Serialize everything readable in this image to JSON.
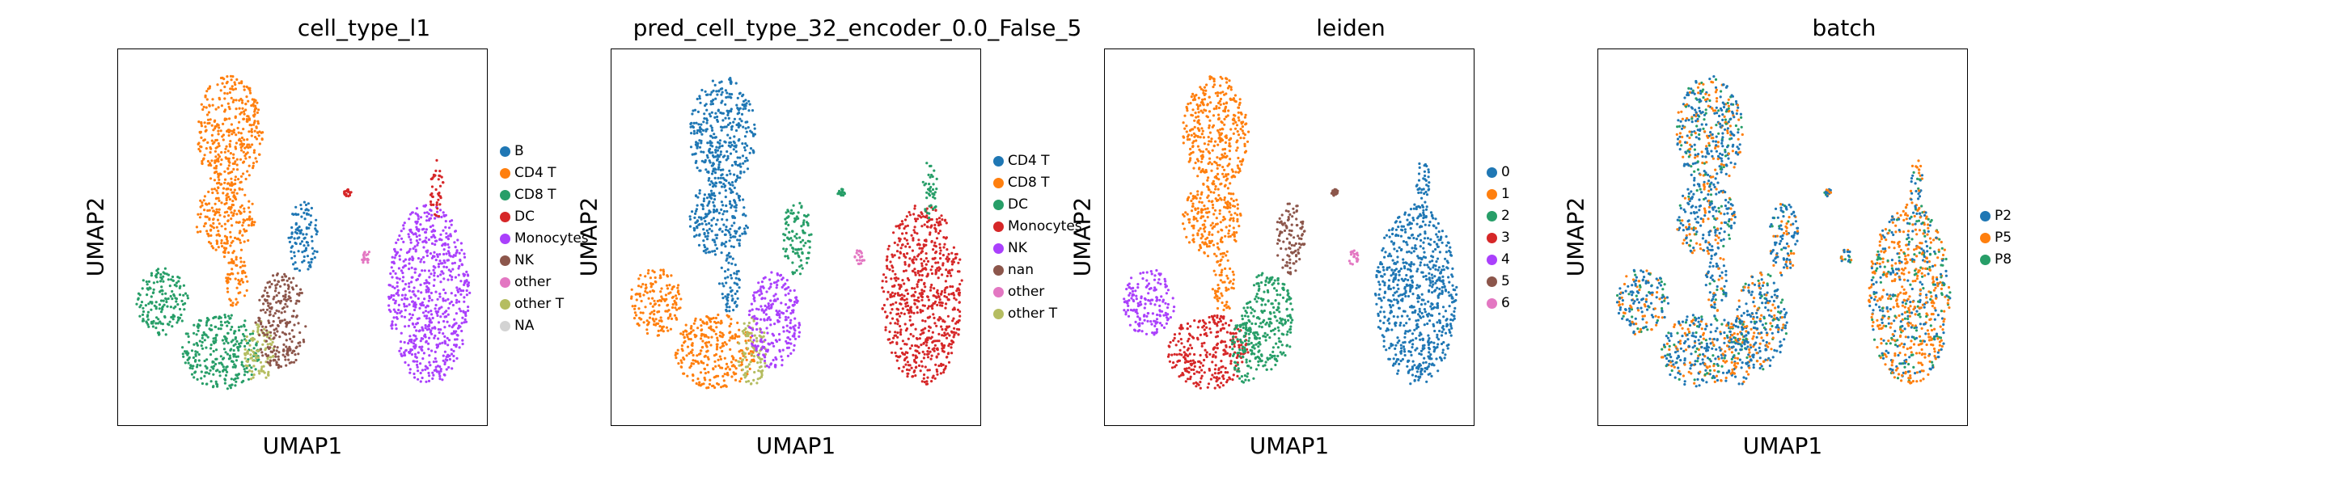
{
  "chart_data": [
    {
      "type": "scatter",
      "title": "cell_type_l1",
      "xlabel": "UMAP1",
      "ylabel": "UMAP2",
      "grid": false,
      "legend_position": "right",
      "categories": [
        "B",
        "CD4 T",
        "CD8 T",
        "DC",
        "Monocytes",
        "NK",
        "other",
        "other T",
        "NA"
      ],
      "colors": [
        "#1f77b4",
        "#ff7f0e",
        "#279e68",
        "#d62728",
        "#aa40fc",
        "#8c564b",
        "#e377c2",
        "#b5bd61",
        "#d3d3d3"
      ],
      "clusters": [
        {
          "cat": 1,
          "x": 0.3,
          "y": 0.78,
          "rx": 0.09,
          "ry": 0.15
        },
        {
          "cat": 1,
          "x": 0.29,
          "y": 0.55,
          "rx": 0.08,
          "ry": 0.1
        },
        {
          "cat": 1,
          "x": 0.32,
          "y": 0.38,
          "rx": 0.03,
          "ry": 0.08
        },
        {
          "cat": 2,
          "x": 0.12,
          "y": 0.33,
          "rx": 0.07,
          "ry": 0.09
        },
        {
          "cat": 2,
          "x": 0.28,
          "y": 0.2,
          "rx": 0.11,
          "ry": 0.1
        },
        {
          "cat": 7,
          "x": 0.38,
          "y": 0.2,
          "rx": 0.04,
          "ry": 0.09
        },
        {
          "cat": 5,
          "x": 0.44,
          "y": 0.28,
          "rx": 0.07,
          "ry": 0.13
        },
        {
          "cat": 0,
          "x": 0.5,
          "y": 0.5,
          "rx": 0.04,
          "ry": 0.1
        },
        {
          "cat": 6,
          "x": 0.67,
          "y": 0.45,
          "rx": 0.015,
          "ry": 0.02
        },
        {
          "cat": 3,
          "x": 0.62,
          "y": 0.62,
          "rx": 0.01,
          "ry": 0.01
        },
        {
          "cat": 4,
          "x": 0.84,
          "y": 0.35,
          "rx": 0.11,
          "ry": 0.24
        },
        {
          "cat": 3,
          "x": 0.86,
          "y": 0.63,
          "rx": 0.02,
          "ry": 0.08
        }
      ]
    },
    {
      "type": "scatter",
      "title": "pred_cell_type_32_encoder_0.0_False_5",
      "xlabel": "UMAP1",
      "ylabel": "UMAP2",
      "grid": false,
      "legend_position": "right",
      "categories": [
        "CD4 T",
        "CD8 T",
        "DC",
        "Monocytes",
        "NK",
        "nan",
        "other",
        "other T"
      ],
      "colors": [
        "#1f77b4",
        "#ff7f0e",
        "#279e68",
        "#d62728",
        "#aa40fc",
        "#8c564b",
        "#e377c2",
        "#b5bd61"
      ],
      "clusters": [
        {
          "cat": 0,
          "x": 0.3,
          "y": 0.78,
          "rx": 0.09,
          "ry": 0.15
        },
        {
          "cat": 0,
          "x": 0.29,
          "y": 0.55,
          "rx": 0.08,
          "ry": 0.1
        },
        {
          "cat": 0,
          "x": 0.32,
          "y": 0.38,
          "rx": 0.03,
          "ry": 0.08
        },
        {
          "cat": 1,
          "x": 0.12,
          "y": 0.33,
          "rx": 0.07,
          "ry": 0.09
        },
        {
          "cat": 1,
          "x": 0.28,
          "y": 0.2,
          "rx": 0.11,
          "ry": 0.1
        },
        {
          "cat": 7,
          "x": 0.38,
          "y": 0.2,
          "rx": 0.04,
          "ry": 0.09
        },
        {
          "cat": 4,
          "x": 0.44,
          "y": 0.28,
          "rx": 0.07,
          "ry": 0.13
        },
        {
          "cat": 2,
          "x": 0.5,
          "y": 0.5,
          "rx": 0.04,
          "ry": 0.1
        },
        {
          "cat": 6,
          "x": 0.67,
          "y": 0.45,
          "rx": 0.015,
          "ry": 0.02
        },
        {
          "cat": 2,
          "x": 0.62,
          "y": 0.62,
          "rx": 0.01,
          "ry": 0.01
        },
        {
          "cat": 3,
          "x": 0.84,
          "y": 0.35,
          "rx": 0.11,
          "ry": 0.24
        },
        {
          "cat": 2,
          "x": 0.86,
          "y": 0.63,
          "rx": 0.02,
          "ry": 0.08
        }
      ]
    },
    {
      "type": "scatter",
      "title": "leiden",
      "xlabel": "UMAP1",
      "ylabel": "UMAP2",
      "grid": false,
      "legend_position": "right",
      "categories": [
        "0",
        "1",
        "2",
        "3",
        "4",
        "5",
        "6"
      ],
      "colors": [
        "#1f77b4",
        "#ff7f0e",
        "#279e68",
        "#d62728",
        "#aa40fc",
        "#8c564b",
        "#e377c2"
      ],
      "clusters": [
        {
          "cat": 1,
          "x": 0.3,
          "y": 0.78,
          "rx": 0.09,
          "ry": 0.15
        },
        {
          "cat": 1,
          "x": 0.29,
          "y": 0.55,
          "rx": 0.08,
          "ry": 0.1
        },
        {
          "cat": 1,
          "x": 0.32,
          "y": 0.38,
          "rx": 0.03,
          "ry": 0.08
        },
        {
          "cat": 4,
          "x": 0.12,
          "y": 0.33,
          "rx": 0.07,
          "ry": 0.09
        },
        {
          "cat": 3,
          "x": 0.28,
          "y": 0.2,
          "rx": 0.11,
          "ry": 0.1
        },
        {
          "cat": 2,
          "x": 0.38,
          "y": 0.2,
          "rx": 0.04,
          "ry": 0.09
        },
        {
          "cat": 2,
          "x": 0.44,
          "y": 0.28,
          "rx": 0.07,
          "ry": 0.13
        },
        {
          "cat": 5,
          "x": 0.5,
          "y": 0.5,
          "rx": 0.04,
          "ry": 0.1
        },
        {
          "cat": 6,
          "x": 0.67,
          "y": 0.45,
          "rx": 0.015,
          "ry": 0.02
        },
        {
          "cat": 5,
          "x": 0.62,
          "y": 0.62,
          "rx": 0.01,
          "ry": 0.01
        },
        {
          "cat": 0,
          "x": 0.84,
          "y": 0.35,
          "rx": 0.11,
          "ry": 0.24
        },
        {
          "cat": 0,
          "x": 0.86,
          "y": 0.63,
          "rx": 0.02,
          "ry": 0.08
        }
      ]
    },
    {
      "type": "scatter",
      "title": "batch",
      "xlabel": "UMAP1",
      "ylabel": "UMAP2",
      "grid": false,
      "legend_position": "right",
      "categories": [
        "P2",
        "P5",
        "P8"
      ],
      "colors": [
        "#1f77b4",
        "#ff7f0e",
        "#279e68"
      ],
      "mixed": true,
      "clusters": [
        {
          "cat": 0,
          "x": 0.3,
          "y": 0.78,
          "rx": 0.09,
          "ry": 0.15
        },
        {
          "cat": 0,
          "x": 0.29,
          "y": 0.55,
          "rx": 0.08,
          "ry": 0.1
        },
        {
          "cat": 0,
          "x": 0.32,
          "y": 0.38,
          "rx": 0.03,
          "ry": 0.08
        },
        {
          "cat": 0,
          "x": 0.12,
          "y": 0.33,
          "rx": 0.07,
          "ry": 0.09
        },
        {
          "cat": 0,
          "x": 0.28,
          "y": 0.2,
          "rx": 0.11,
          "ry": 0.1
        },
        {
          "cat": 0,
          "x": 0.38,
          "y": 0.2,
          "rx": 0.04,
          "ry": 0.09
        },
        {
          "cat": 0,
          "x": 0.44,
          "y": 0.28,
          "rx": 0.07,
          "ry": 0.13
        },
        {
          "cat": 0,
          "x": 0.5,
          "y": 0.5,
          "rx": 0.04,
          "ry": 0.1
        },
        {
          "cat": 0,
          "x": 0.67,
          "y": 0.45,
          "rx": 0.015,
          "ry": 0.02
        },
        {
          "cat": 0,
          "x": 0.62,
          "y": 0.62,
          "rx": 0.01,
          "ry": 0.01
        },
        {
          "cat": 1,
          "x": 0.84,
          "y": 0.35,
          "rx": 0.11,
          "ry": 0.24
        },
        {
          "cat": 0,
          "x": 0.86,
          "y": 0.63,
          "rx": 0.02,
          "ry": 0.08
        }
      ]
    }
  ]
}
